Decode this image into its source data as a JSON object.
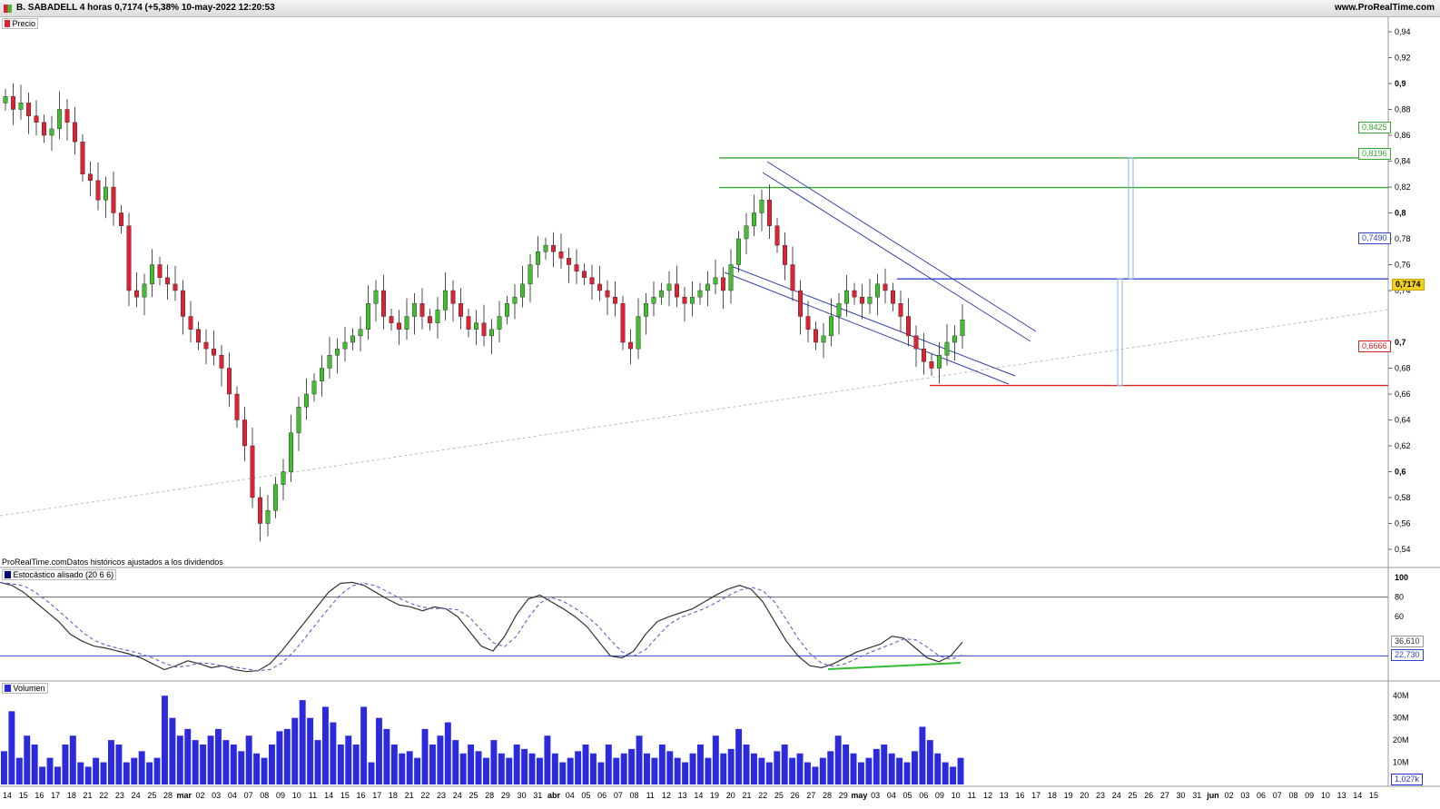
{
  "header": {
    "title": "B. SABADELL 4 horas 0,7174 (+5,38% 10-may-2022 12:20:53",
    "site": "www.ProRealTime.com"
  },
  "panels": {
    "price_label": "Precio",
    "source_note": "ProRealTime.comDatos históricos ajustados a los dividendos",
    "stoch_label": "Estocástico alisado (20 6 6)",
    "volume_label": "Volumen"
  },
  "colors": {
    "up": "#44bb33",
    "down": "#dd2233",
    "volume": "#2b2bdd",
    "stoch_main": "#333333",
    "stoch_signal": "#6a5acd",
    "support": "#dd2222",
    "target": "#33aa33",
    "resistance": "#3344cc",
    "current": "#f2d020"
  },
  "price_axis": {
    "ticks": [
      "0,94",
      "0,92",
      "0,9",
      "0,88",
      "0,86",
      "0,84",
      "0,82",
      "0,8",
      "0,78",
      "0,76",
      "0,74",
      "0,7",
      "0,68",
      "0,66",
      "0,64",
      "0,62",
      "0,6",
      "0,58",
      "0,56",
      "0,54"
    ],
    "bold_ticks": [
      "0,9",
      "0,8",
      "0,7",
      "0,6"
    ]
  },
  "levels": {
    "target2": "0,8425",
    "target1": "0,8196",
    "resistance": "0,7490",
    "current": "0,7174",
    "support": "0,6666"
  },
  "stoch_axis": {
    "ticks": [
      "100",
      "80",
      "60"
    ],
    "value_main": "36,610",
    "value_signal": "22,730"
  },
  "volume_axis": {
    "ticks": [
      "40M",
      "30M",
      "20M",
      "10M"
    ],
    "value": "1,027k"
  },
  "x_axis": {
    "labels": [
      "14",
      "15",
      "16",
      "17",
      "18",
      "21",
      "22",
      "23",
      "24",
      "25",
      "28",
      "mar",
      "02",
      "03",
      "04",
      "07",
      "08",
      "09",
      "10",
      "11",
      "14",
      "15",
      "16",
      "17",
      "18",
      "21",
      "22",
      "23",
      "24",
      "25",
      "28",
      "29",
      "30",
      "31",
      "abr",
      "04",
      "05",
      "06",
      "07",
      "08",
      "11",
      "12",
      "13",
      "14",
      "19",
      "20",
      "21",
      "22",
      "25",
      "26",
      "27",
      "28",
      "29",
      "may",
      "03",
      "04",
      "05",
      "06",
      "09",
      "10",
      "11",
      "12",
      "13",
      "16",
      "17",
      "18",
      "19",
      "20",
      "23",
      "24",
      "25",
      "26",
      "27",
      "30",
      "31",
      "jun",
      "02",
      "03",
      "06",
      "07",
      "08",
      "09",
      "10",
      "13",
      "14",
      "15"
    ],
    "bold_labels": [
      "mar",
      "abr",
      "may",
      "jun"
    ]
  },
  "chart_data": {
    "type": "candlestick",
    "title": "B. SABADELL 4 horas 0,7174 (+5,38% 10-may-2022 12:20:53",
    "ylim": [
      0.535,
      0.955
    ],
    "close_path": [
      0.89,
      0.88,
      0.885,
      0.875,
      0.87,
      0.86,
      0.865,
      0.88,
      0.87,
      0.855,
      0.83,
      0.825,
      0.81,
      0.82,
      0.8,
      0.79,
      0.74,
      0.735,
      0.745,
      0.76,
      0.75,
      0.745,
      0.74,
      0.72,
      0.71,
      0.7,
      0.695,
      0.69,
      0.68,
      0.66,
      0.64,
      0.62,
      0.58,
      0.56,
      0.57,
      0.59,
      0.6,
      0.63,
      0.65,
      0.66,
      0.67,
      0.68,
      0.69,
      0.695,
      0.7,
      0.705,
      0.71,
      0.73,
      0.74,
      0.72,
      0.715,
      0.71,
      0.72,
      0.73,
      0.72,
      0.715,
      0.725,
      0.74,
      0.73,
      0.72,
      0.71,
      0.715,
      0.705,
      0.71,
      0.72,
      0.73,
      0.735,
      0.745,
      0.76,
      0.77,
      0.775,
      0.77,
      0.765,
      0.76,
      0.755,
      0.75,
      0.745,
      0.74,
      0.735,
      0.73,
      0.7,
      0.695,
      0.72,
      0.73,
      0.735,
      0.74,
      0.745,
      0.735,
      0.73,
      0.735,
      0.74,
      0.745,
      0.75,
      0.74,
      0.76,
      0.78,
      0.79,
      0.8,
      0.81,
      0.79,
      0.775,
      0.76,
      0.74,
      0.72,
      0.71,
      0.7,
      0.705,
      0.72,
      0.73,
      0.74,
      0.735,
      0.73,
      0.735,
      0.745,
      0.74,
      0.73,
      0.72,
      0.705,
      0.695,
      0.685,
      0.68,
      0.69,
      0.7,
      0.705,
      0.7174
    ],
    "up_color": "#44bb33",
    "down_color": "#dd2233",
    "levels": [
      0.8425,
      0.8196,
      0.749,
      0.7174,
      0.6666
    ],
    "stochastic": {
      "name": "Estocástico alisado (20 6 6)",
      "overbought": 80,
      "oversold": 20,
      "main_last": 36.61,
      "signal_last": 22.73
    },
    "volume": {
      "max_tick": "40M",
      "last": "1,027k"
    }
  }
}
